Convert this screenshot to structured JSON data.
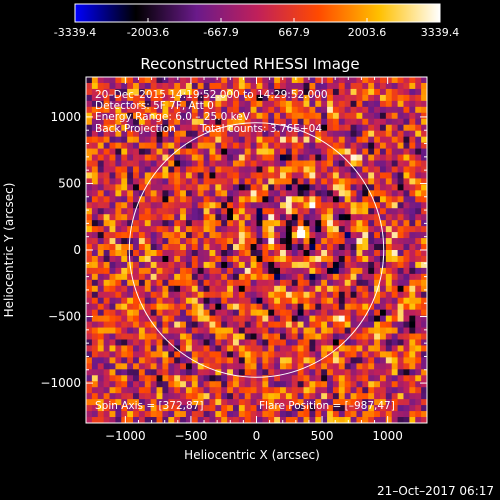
{
  "colorbar": {
    "ticks": [
      "-3339.4",
      "-2003.6",
      "-667.9",
      "667.9",
      "2003.6",
      "3339.4"
    ],
    "min": -3339.4,
    "max": 3339.4,
    "stops": [
      "#0000ff",
      "#000000",
      "#6a1a8a",
      "#c0205a",
      "#ff4a00",
      "#ffc000",
      "#ffffff"
    ]
  },
  "chart_data": {
    "type": "heatmap",
    "title": "Reconstructed RHESSI Image",
    "xlabel": "Heliocentric X (arcsec)",
    "ylabel": "Heliocentric Y (arcsec)",
    "xlim": [
      -1300,
      1300
    ],
    "ylim": [
      -1300,
      1300
    ],
    "xticks": [
      -1000,
      -500,
      0,
      500,
      1000
    ],
    "yticks": [
      -1000,
      -500,
      0,
      500,
      1000
    ],
    "xtick_labels": [
      "−1000",
      "−500",
      "0",
      "500",
      "1000"
    ],
    "ytick_labels": [
      "−1000",
      "−500",
      "0",
      "500",
      "1000"
    ],
    "solar_limb_radius": 970,
    "source_position": [
      340,
      120
    ],
    "annotations": {
      "time": "20–Dec–2015 14:19:52.000 to 14:29:52.000",
      "detectors": "Detectors: 5F 7F, Att 0",
      "energy": "Energy Range: 6.0 – 25.0 keV",
      "method": "Back Projection",
      "counts": "Total counts: 3.76E+04",
      "spin_axis": "Spin Axis = [372,87]",
      "flare_position": "Flare Position = [–987,47]"
    }
  },
  "footer": {
    "timestamp": "21–Oct–2017 06:17"
  }
}
